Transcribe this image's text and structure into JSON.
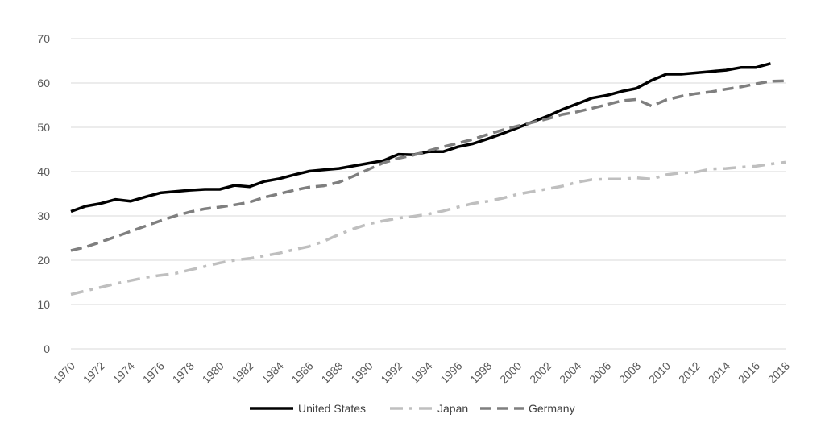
{
  "chart_data": {
    "type": "line",
    "title": "",
    "xlabel": "",
    "ylabel": "",
    "ylim": [
      0,
      70
    ],
    "yticks": [
      0,
      10,
      20,
      30,
      40,
      50,
      60,
      70
    ],
    "xlim": [
      1970,
      2018
    ],
    "xticks": [
      1970,
      1972,
      1974,
      1976,
      1978,
      1980,
      1982,
      1984,
      1986,
      1988,
      1990,
      1992,
      1994,
      1996,
      1998,
      2000,
      2002,
      2004,
      2006,
      2008,
      2010,
      2012,
      2014,
      2016,
      2018
    ],
    "grid": true,
    "legend_position": "bottom",
    "x": [
      1970,
      1971,
      1972,
      1973,
      1974,
      1975,
      1976,
      1977,
      1978,
      1979,
      1980,
      1981,
      1982,
      1983,
      1984,
      1985,
      1986,
      1987,
      1988,
      1989,
      1990,
      1991,
      1992,
      1993,
      1994,
      1995,
      1996,
      1997,
      1998,
      1999,
      2000,
      2001,
      2002,
      2003,
      2004,
      2005,
      2006,
      2007,
      2008,
      2009,
      2010,
      2011,
      2012,
      2013,
      2014,
      2015,
      2016,
      2017,
      2018
    ],
    "series": [
      {
        "name": "United States",
        "color": "#000000",
        "dash": "solid",
        "values": [
          31.0,
          32.2,
          32.8,
          33.7,
          33.3,
          34.3,
          35.2,
          35.5,
          35.8,
          36.0,
          36.0,
          36.9,
          36.6,
          37.8,
          38.4,
          39.3,
          40.1,
          40.4,
          40.7,
          41.3,
          41.9,
          42.5,
          43.9,
          43.8,
          44.5,
          44.5,
          45.6,
          46.3,
          47.4,
          48.6,
          49.9,
          51.2,
          52.5,
          54.0,
          55.3,
          56.6,
          57.2,
          58.1,
          58.8,
          60.6,
          62.0,
          62.0,
          62.3,
          62.6,
          62.9,
          63.5,
          63.5,
          64.4,
          null
        ]
      },
      {
        "name": "Japan",
        "color": "#bfbfbf",
        "dash": "dashdot",
        "values": [
          12.3,
          13.1,
          13.9,
          14.7,
          15.4,
          16.1,
          16.6,
          17.0,
          17.8,
          18.6,
          19.4,
          20.0,
          20.4,
          21.0,
          21.6,
          22.4,
          23.1,
          24.3,
          25.8,
          27.1,
          28.2,
          28.9,
          29.5,
          29.9,
          30.4,
          31.1,
          32.0,
          32.8,
          33.3,
          34.0,
          34.9,
          35.5,
          36.1,
          36.7,
          37.6,
          38.2,
          38.3,
          38.3,
          38.6,
          38.3,
          39.3,
          39.7,
          39.9,
          40.6,
          40.7,
          41.0,
          41.2,
          41.7,
          42.1
        ]
      },
      {
        "name": "Germany",
        "color": "#7f7f7f",
        "dash": "dash",
        "values": [
          22.2,
          23.0,
          24.1,
          25.3,
          26.5,
          27.7,
          28.9,
          30.0,
          30.9,
          31.6,
          32.0,
          32.5,
          33.1,
          34.2,
          35.0,
          35.8,
          36.5,
          36.8,
          37.6,
          39.0,
          40.5,
          42.0,
          43.0,
          43.7,
          44.7,
          45.6,
          46.4,
          47.3,
          48.4,
          49.4,
          50.3,
          51.1,
          51.9,
          52.9,
          53.5,
          54.3,
          55.1,
          56.0,
          56.3,
          54.8,
          56.2,
          57.0,
          57.6,
          58.0,
          58.6,
          59.1,
          59.8,
          60.4,
          60.5
        ]
      }
    ]
  }
}
